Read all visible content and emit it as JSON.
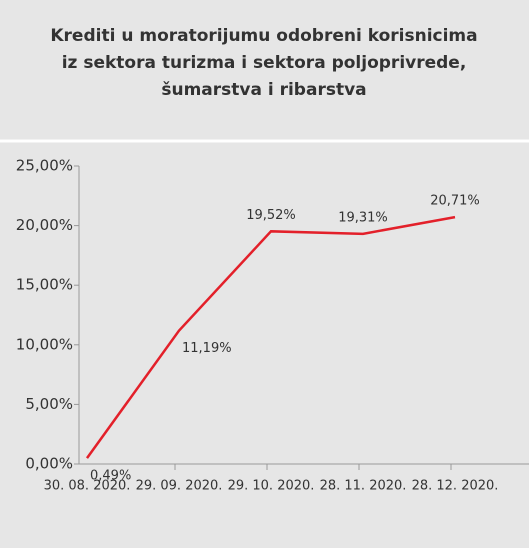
{
  "chart_data": {
    "type": "line",
    "title": [
      "Krediti u moratorijumu odobreni korisnicima",
      "iz sektora turizma i sektora poljoprivrede,",
      "šumarstva i ribarstva"
    ],
    "categories": [
      "30. 08. 2020.",
      "29. 09. 2020.",
      "29. 10. 2020.",
      "28. 11. 2020.",
      "28. 12. 2020."
    ],
    "series": [
      {
        "name": null,
        "color": "#e3202a",
        "values": [
          0.49,
          11.19,
          19.52,
          19.31,
          20.71
        ],
        "value_labels": [
          "0,49%",
          "11,19%",
          "19,52%",
          "19,31%",
          "20,71%"
        ]
      }
    ],
    "ylim": [
      0,
      25
    ],
    "yticks": [
      {
        "value": 0,
        "label": "0,00%"
      },
      {
        "value": 5,
        "label": "5,00%"
      },
      {
        "value": 10,
        "label": "10,00%"
      },
      {
        "value": 15,
        "label": "15,00%"
      },
      {
        "value": 20,
        "label": "20,00%"
      },
      {
        "value": 25,
        "label": "25,00%"
      }
    ],
    "grid": false
  }
}
